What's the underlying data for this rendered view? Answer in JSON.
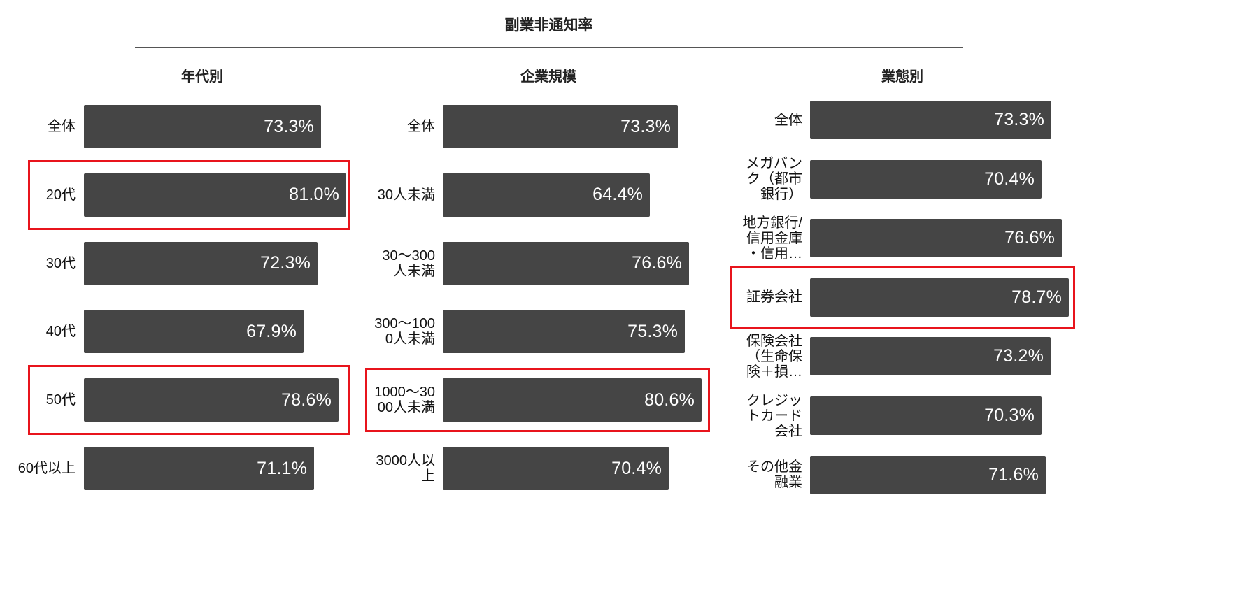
{
  "title": "副業非通知率",
  "colors": {
    "bar": "#454545",
    "highlight": "#e8141c",
    "value_text": "#ffffff"
  },
  "panels": [
    {
      "title": "年代別",
      "items": [
        {
          "label": "全体",
          "value": "73.3%",
          "highlight": false
        },
        {
          "label": "20代",
          "value": "81.0%",
          "highlight": true
        },
        {
          "label": "30代",
          "value": "72.3%",
          "highlight": false
        },
        {
          "label": "40代",
          "value": "67.9%",
          "highlight": false
        },
        {
          "label": "50代",
          "value": "78.6%",
          "highlight": true
        },
        {
          "label": "60代以上",
          "value": "71.1%",
          "highlight": false
        }
      ]
    },
    {
      "title": "企業規模",
      "items": [
        {
          "label": "全体",
          "value": "73.3%",
          "highlight": false
        },
        {
          "label": "30人未満",
          "value": "64.4%",
          "highlight": false
        },
        {
          "label": "30〜300\n人未満",
          "value": "76.6%",
          "highlight": false
        },
        {
          "label": "300〜100\n0人未満",
          "value": "75.3%",
          "highlight": false
        },
        {
          "label": "1000〜30\n00人未満",
          "value": "80.6%",
          "highlight": true
        },
        {
          "label": "3000人以\n上",
          "value": "70.4%",
          "highlight": false
        }
      ]
    },
    {
      "title": "業態別",
      "items": [
        {
          "label": "全体",
          "value": "73.3%",
          "highlight": false
        },
        {
          "label": "メガバン\nク（都市\n銀行）",
          "value": "70.4%",
          "highlight": false
        },
        {
          "label": "地方銀行/\n信用金庫\n・信用…",
          "value": "76.6%",
          "highlight": false
        },
        {
          "label": "証券会社",
          "value": "78.7%",
          "highlight": true
        },
        {
          "label": "保険会社\n（生命保\n険＋損…",
          "value": "73.2%",
          "highlight": false
        },
        {
          "label": "クレジッ\nトカード\n会社",
          "value": "70.3%",
          "highlight": false
        },
        {
          "label": "その他金\n融業",
          "value": "71.6%",
          "highlight": false
        }
      ]
    }
  ],
  "chart_data": [
    {
      "type": "bar",
      "orientation": "horizontal",
      "title": "副業非通知率 — 年代別",
      "categories": [
        "全体",
        "20代",
        "30代",
        "40代",
        "50代",
        "60代以上"
      ],
      "values": [
        73.3,
        81.0,
        72.3,
        67.9,
        78.6,
        71.1
      ],
      "unit": "%",
      "highlighted": [
        "20代",
        "50代"
      ],
      "xlabel": "",
      "ylabel": "",
      "grid": false,
      "data_labels": true
    },
    {
      "type": "bar",
      "orientation": "horizontal",
      "title": "副業非通知率 — 企業規模",
      "categories": [
        "全体",
        "30人未満",
        "30〜300人未満",
        "300〜1000人未満",
        "1000〜3000人未満",
        "3000人以上"
      ],
      "values": [
        73.3,
        64.4,
        76.6,
        75.3,
        80.6,
        70.4
      ],
      "unit": "%",
      "highlighted": [
        "1000〜3000人未満"
      ],
      "xlabel": "",
      "ylabel": "",
      "grid": false,
      "data_labels": true
    },
    {
      "type": "bar",
      "orientation": "horizontal",
      "title": "副業非通知率 — 業態別",
      "categories": [
        "全体",
        "メガバンク（都市銀行）",
        "地方銀行/信用金庫・信用…",
        "証券会社",
        "保険会社（生命保険＋損…",
        "クレジットカード会社",
        "その他金融業"
      ],
      "values": [
        73.3,
        70.4,
        76.6,
        78.7,
        73.2,
        70.3,
        71.6
      ],
      "unit": "%",
      "highlighted": [
        "証券会社"
      ],
      "xlabel": "",
      "ylabel": "",
      "grid": false,
      "data_labels": true
    }
  ]
}
